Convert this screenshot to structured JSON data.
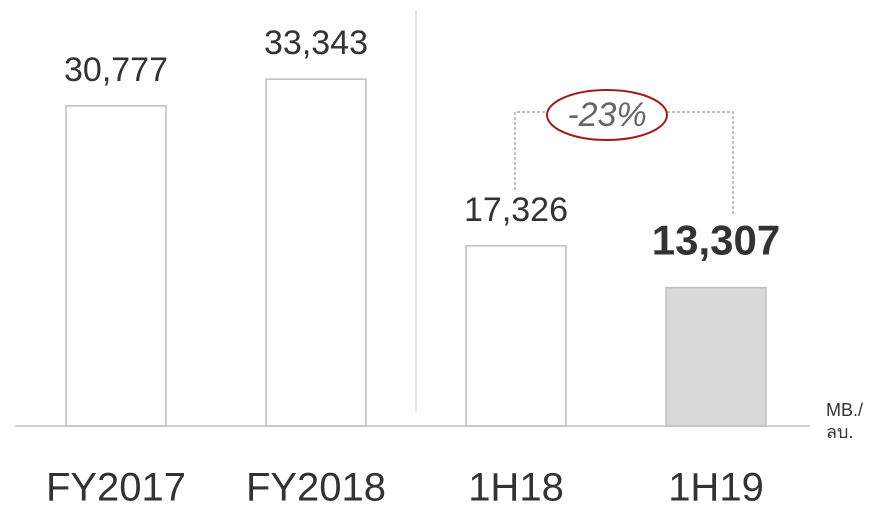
{
  "chart_data": {
    "type": "bar",
    "categories": [
      "FY2017",
      "FY2018",
      "1H18",
      "1H19"
    ],
    "values": [
      30777,
      33343,
      17326,
      13307
    ],
    "value_labels": [
      "30,777",
      "33,343",
      "17,326",
      "13,307"
    ],
    "colors": [
      "#ffffff",
      "#ffffff",
      "#ffffff",
      "#d9d9d9"
    ],
    "ylim": [
      0,
      40000
    ],
    "annotations": {
      "change": "-23%",
      "unit": [
        "MB./",
        "ลบ."
      ]
    }
  }
}
